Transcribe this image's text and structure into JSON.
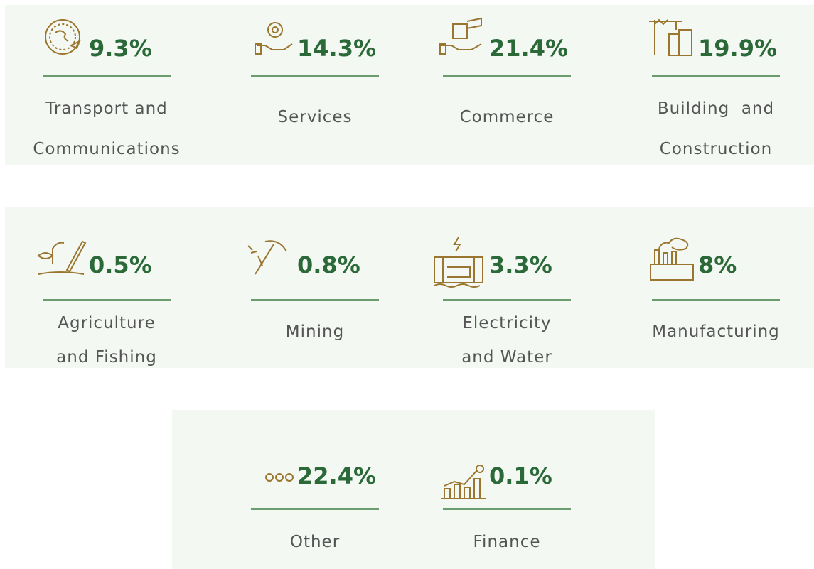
{
  "panels": [
    {
      "items": [
        {
          "value": "9.3%",
          "label": [
            "Transport and",
            "Communications"
          ]
        },
        {
          "value": "14.3%",
          "label": [
            "Services"
          ]
        },
        {
          "value": "21.4%",
          "label": [
            "Commerce"
          ]
        },
        {
          "value": "19.9%",
          "label": [
            "Building  and",
            "Construction"
          ]
        }
      ]
    },
    {
      "items": [
        {
          "value": "0.5%",
          "label": [
            "Agriculture",
            "and Fishing"
          ]
        },
        {
          "value": "0.8%",
          "label": [
            "Mining"
          ]
        },
        {
          "value": "3.3%",
          "label": [
            "Electricity",
            "and Water"
          ]
        },
        {
          "value": "8%",
          "label": [
            "Manufacturing"
          ]
        }
      ]
    },
    {
      "items": [
        {
          "value": "22.4%",
          "label": [
            "Other"
          ]
        },
        {
          "value": "0.1%",
          "label": [
            "Finance"
          ]
        }
      ]
    }
  ]
}
